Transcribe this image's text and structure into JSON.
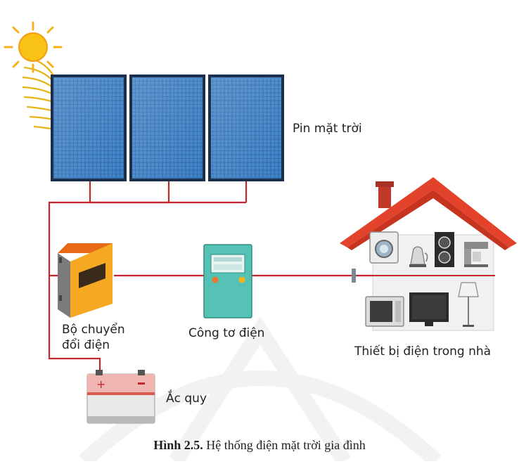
{
  "labels": {
    "solar_panel": "Pin mặt trời",
    "inverter_line1": "Bộ chuyển",
    "inverter_line2": "đổi điện",
    "meter": "Công tơ điện",
    "home_devices": "Thiết bị điện trong nhà",
    "battery": "Ắc quy"
  },
  "caption": {
    "number": "Hình 2.5.",
    "text": " Hệ thống điện mặt trời gia đình"
  },
  "colors": {
    "wire": "#c1272d",
    "panel_cell": "#2f6fb4",
    "roof": "#e4432b",
    "inverter": "#f7a823",
    "meter": "#56c2b6",
    "sun": "#f7b21b"
  }
}
